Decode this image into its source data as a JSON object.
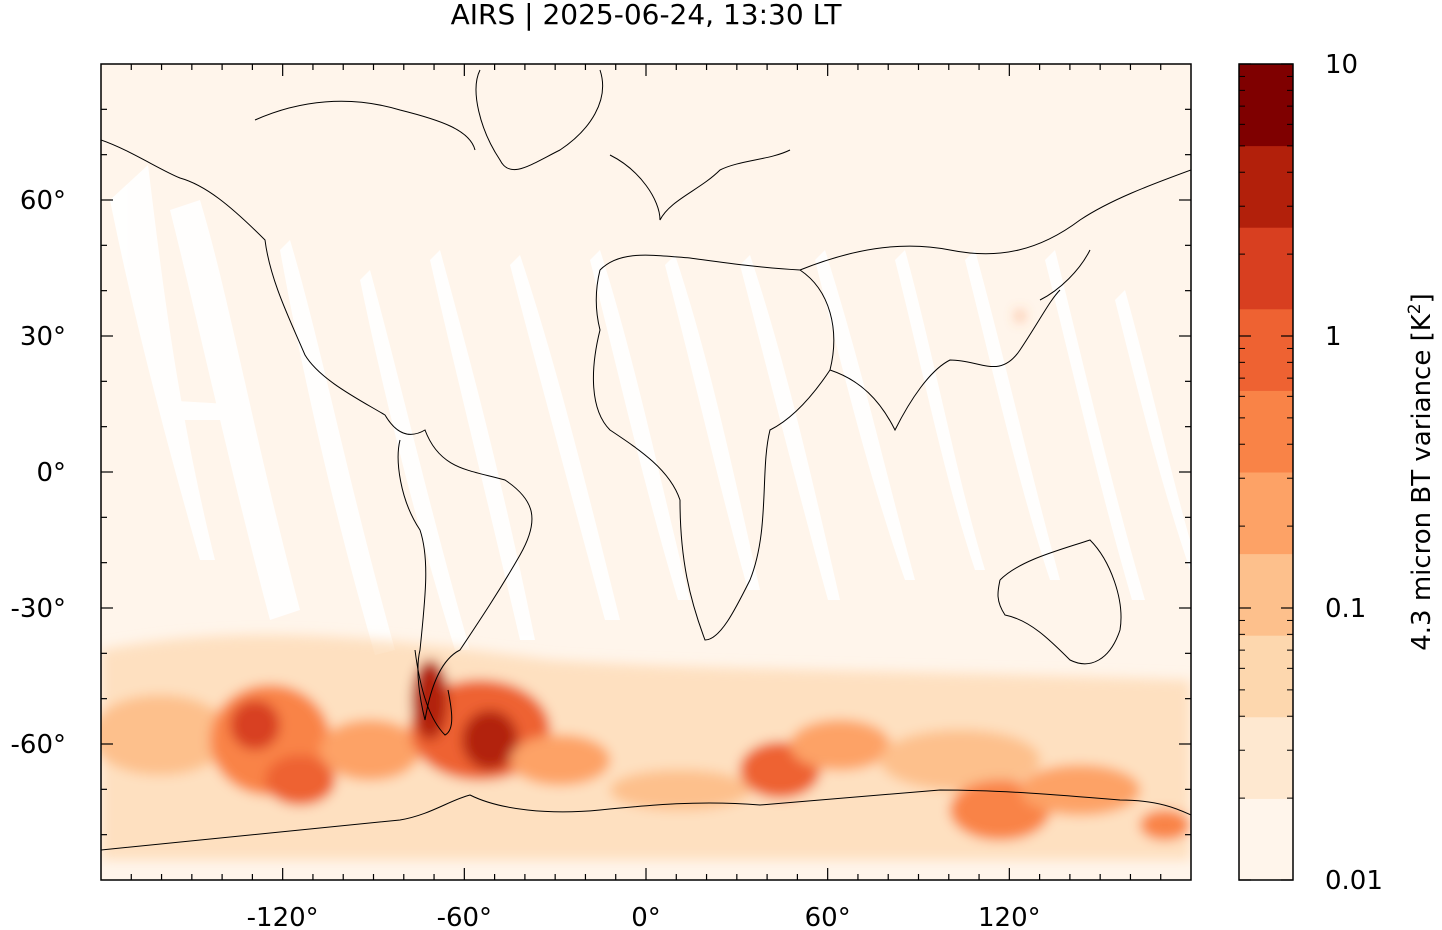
{
  "title": "AIRS | 2025-06-24, 13:30 LT",
  "x_axis": {
    "range": [
      -180,
      180
    ],
    "ticks": [
      {
        "value": -120,
        "label": "-120°"
      },
      {
        "value": -60,
        "label": "-60°"
      },
      {
        "value": 0,
        "label": "0°"
      },
      {
        "value": 60,
        "label": "60°"
      },
      {
        "value": 120,
        "label": "120°"
      }
    ]
  },
  "y_axis": {
    "range": [
      -90,
      90
    ],
    "ticks": [
      {
        "value": 60,
        "label": "60°"
      },
      {
        "value": 30,
        "label": "30°"
      },
      {
        "value": 0,
        "label": "0°"
      },
      {
        "value": -30,
        "label": "-30°"
      },
      {
        "value": -60,
        "label": "-60°"
      }
    ]
  },
  "colorbar": {
    "label": "4.3 micron BT variance [K²]",
    "label_main": "4.3 micron BT variance [K",
    "label_sup": "2",
    "label_close": "]",
    "scale": "log",
    "min": 0.01,
    "max": 10,
    "ticks": [
      {
        "value": 10,
        "label": "10"
      },
      {
        "value": 1,
        "label": "1"
      },
      {
        "value": 0.1,
        "label": "0.1"
      },
      {
        "value": 0.01,
        "label": "0.01"
      }
    ],
    "colors": [
      "#fff5eb",
      "#fee8d0",
      "#fdd7ae",
      "#fdc08c",
      "#fda266",
      "#f98347",
      "#ee6232",
      "#d83f20",
      "#b2200b",
      "#7f0000"
    ]
  },
  "map": {
    "background_color": "#fff5eb",
    "coastline_color": "#000000",
    "features": [
      "coastlines",
      "satellite swath gaps",
      "high variance band over Southern Ocean"
    ]
  }
}
